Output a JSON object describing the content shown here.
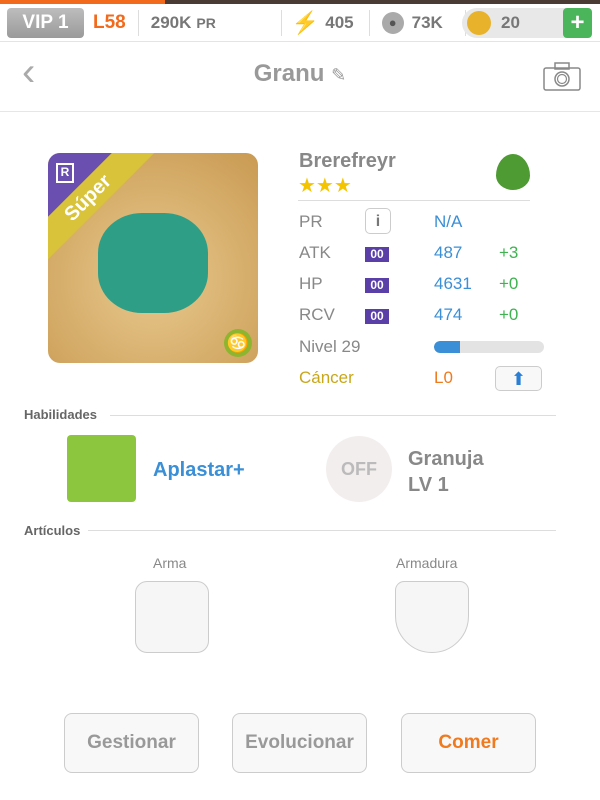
{
  "status": {
    "vip": "VIP 1",
    "level": "L58",
    "pr": "290K",
    "pr_unit": "PR",
    "energy": "405",
    "paw": "73K",
    "coins": "20",
    "add": "+"
  },
  "nav": {
    "title": "Granu"
  },
  "monster": {
    "name": "Brerefreyr",
    "stars": "★★★",
    "badge": "Súper",
    "rarity": "R",
    "element": "leaf",
    "stats": [
      {
        "label": "PR",
        "value": "N/A",
        "bonus": ""
      },
      {
        "label": "ATK",
        "tag": "00",
        "value": "487",
        "bonus": "+3"
      },
      {
        "label": "HP",
        "tag": "00",
        "value": "4631",
        "bonus": "+0"
      },
      {
        "label": "RCV",
        "tag": "00",
        "value": "474",
        "bonus": "+0"
      }
    ],
    "level_label": "Nivel 29",
    "level_progress": 0.24,
    "sign": "Cáncer",
    "sign_level": "L0"
  },
  "skills": {
    "heading": "Habilidades",
    "active": "Aplastar+",
    "passive_state": "OFF",
    "passive_name": "Granuja",
    "passive_level": "LV 1"
  },
  "items": {
    "heading": "Artículos",
    "weapon": "Arma",
    "armor": "Armadura"
  },
  "buttons": {
    "manage": "Gestionar",
    "evolve": "Evolucionar",
    "eat": "Comer"
  },
  "colors": {
    "accent": "#f26a1b",
    "blue": "#3b8fd6",
    "green": "#3fb350",
    "gold": "#c9a71b"
  }
}
